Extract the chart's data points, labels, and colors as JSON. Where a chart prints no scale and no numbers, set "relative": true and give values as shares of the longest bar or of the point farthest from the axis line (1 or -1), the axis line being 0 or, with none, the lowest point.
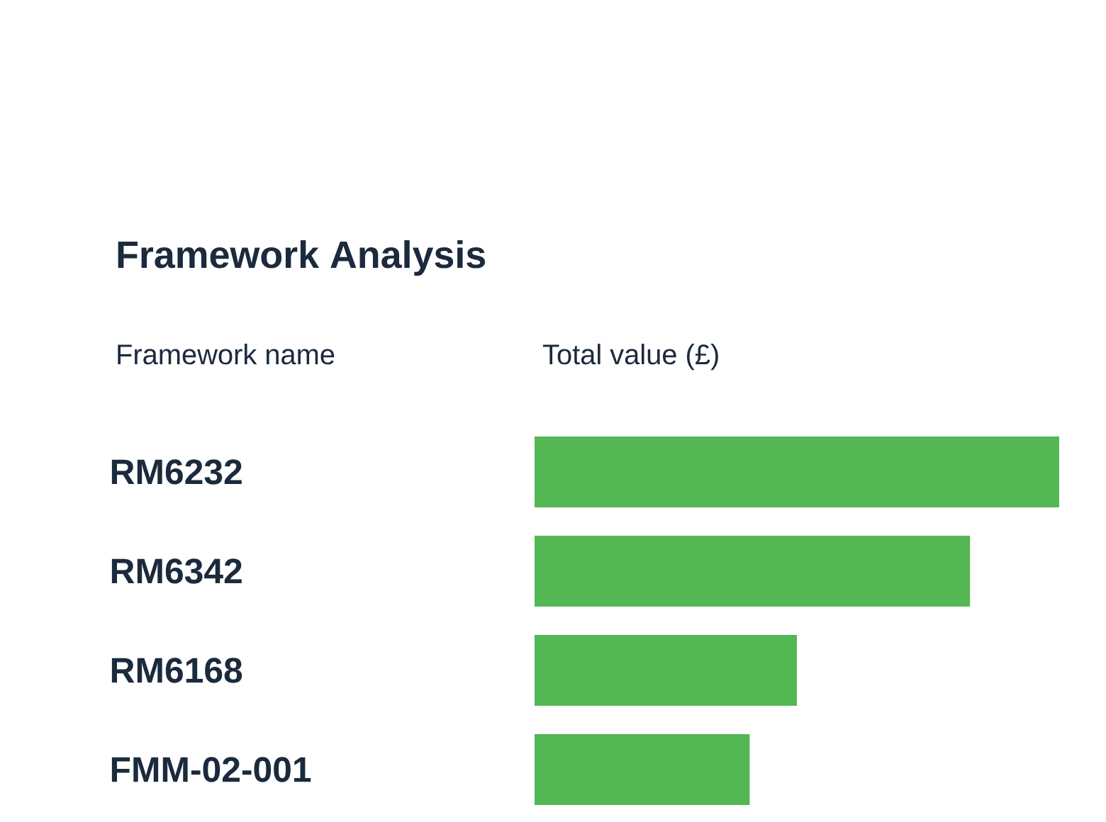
{
  "chart_data": {
    "type": "bar",
    "orientation": "horizontal",
    "relative": true,
    "title": "Framework Analysis",
    "ylabel": "Framework name",
    "xlabel": "Total value (£)",
    "categories": [
      "RM6232",
      "RM6342",
      "RM6168",
      "FMM-02-001"
    ],
    "values": [
      1,
      0.83,
      0.5,
      0.41
    ],
    "color": "#53b853"
  }
}
